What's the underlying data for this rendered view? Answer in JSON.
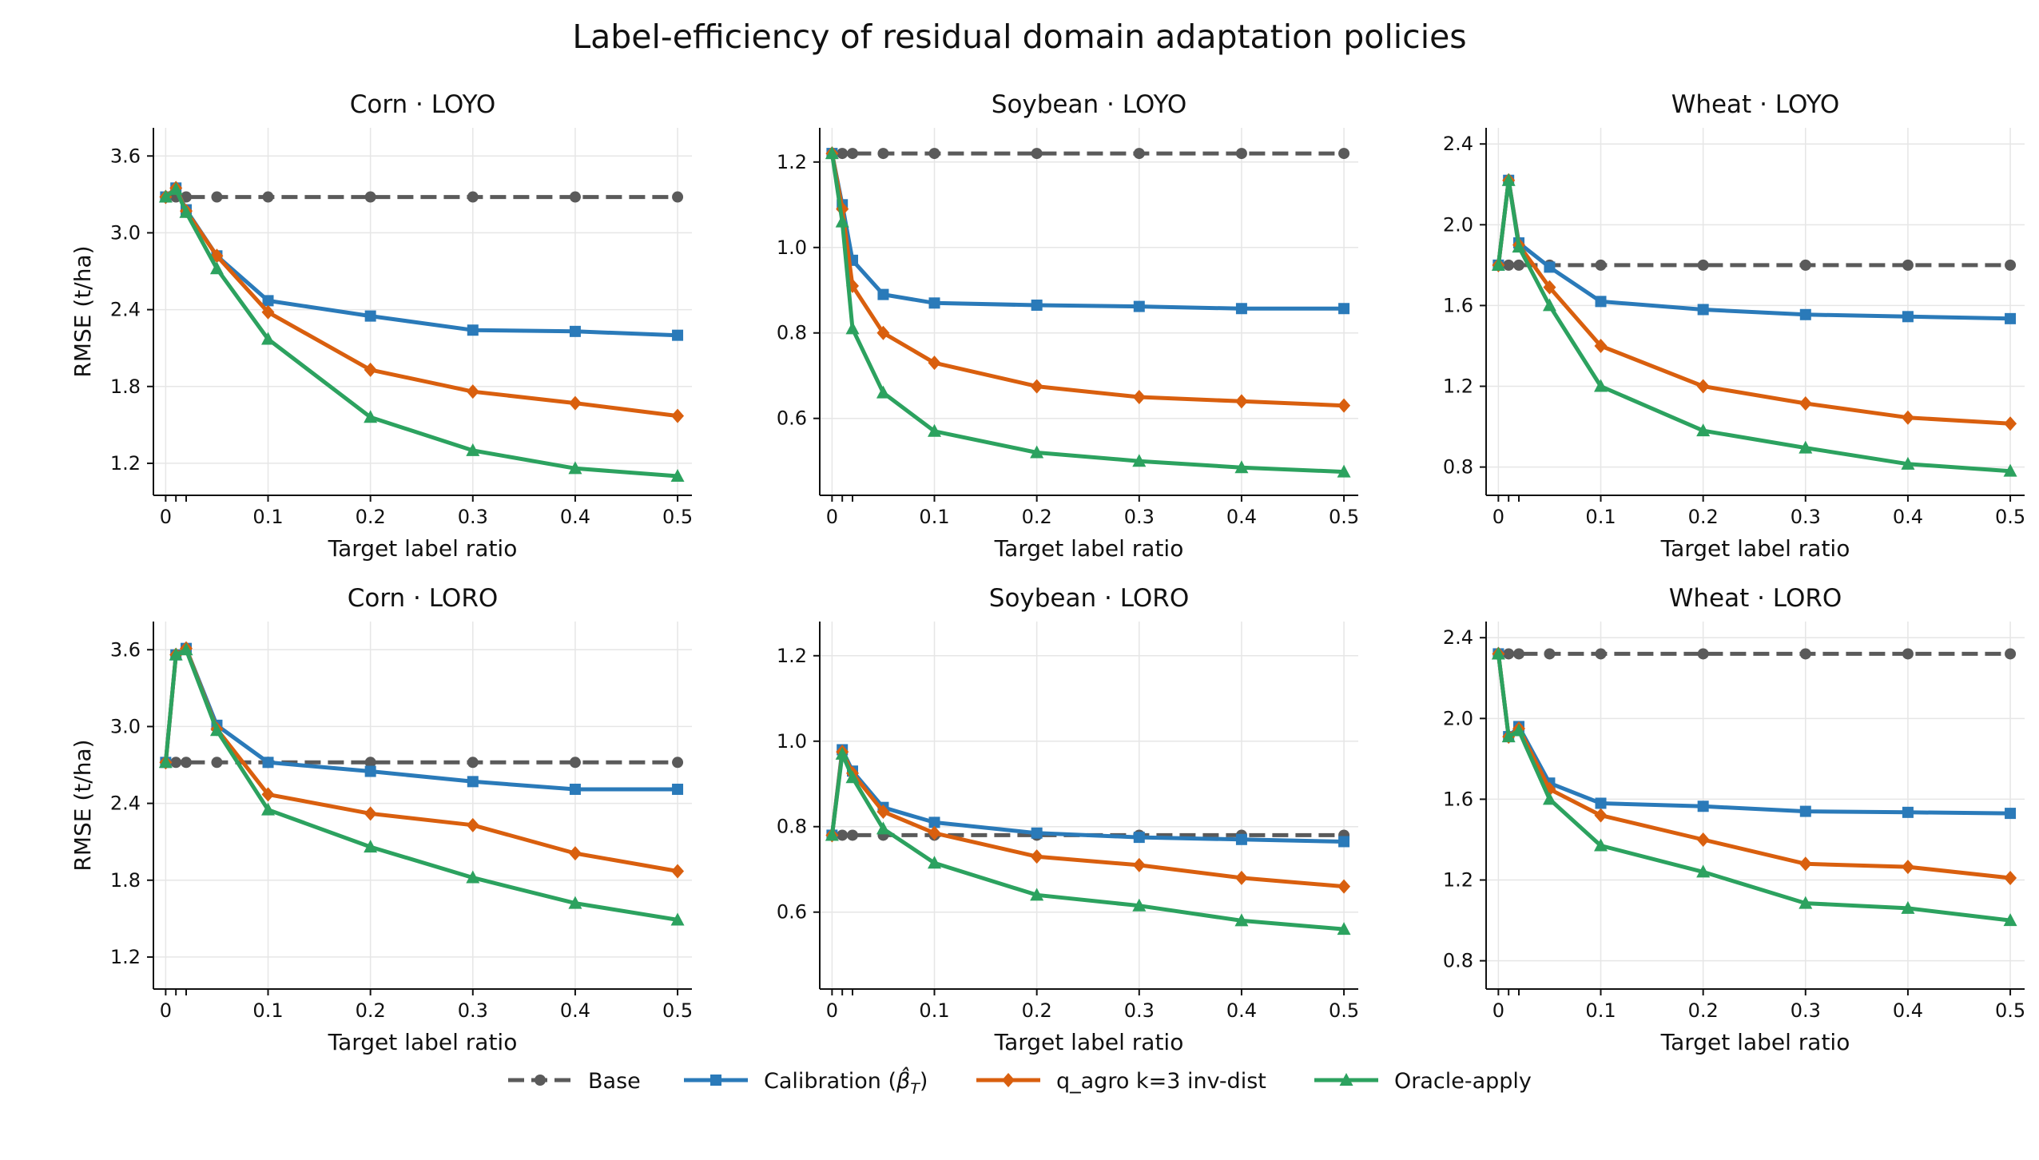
{
  "figure": {
    "title": "Label-efficiency of residual domain adaptation policies"
  },
  "legend": [
    {
      "key": "base",
      "label": "Base",
      "color": "#5a5a5a",
      "marker": "circle",
      "dash": true
    },
    {
      "key": "calib",
      "label": "Calibration (",
      "label_symbol": "β̂",
      "label_sub": "T",
      "label_end": ")",
      "color": "#2a7ab9",
      "marker": "square",
      "dash": false
    },
    {
      "key": "qagro",
      "label": "q_agro k=3 inv-dist",
      "color": "#d95f0e",
      "marker": "diamond",
      "dash": false
    },
    {
      "key": "oracle",
      "label": "Oracle-apply",
      "color": "#2ca25f",
      "marker": "triangle",
      "dash": false
    }
  ],
  "chart_data": [
    {
      "type": "line",
      "title": "Corn · LOYO",
      "xlabel": "Target label ratio",
      "ylabel": "RMSE (t/ha)",
      "xlim": [
        -0.012,
        0.514
      ],
      "ylim": [
        0.95,
        3.82
      ],
      "xticks": [
        0,
        0.1,
        0.2,
        0.3,
        0.4,
        0.5
      ],
      "xticklabels": [
        "0",
        "0.1",
        "0.2",
        "0.3",
        "0.4",
        "0.5"
      ],
      "minor_xticks": [
        0.01,
        0.02
      ],
      "yticks": [
        1.2,
        1.8,
        2.4,
        3.0,
        3.6
      ],
      "yticklabels": [
        "1.2",
        "1.8",
        "2.4",
        "3.0",
        "3.6"
      ],
      "grid": true,
      "x": [
        0,
        0.01,
        0.02,
        0.05,
        0.1,
        0.2,
        0.3,
        0.4,
        0.5
      ],
      "series": [
        {
          "key": "base",
          "values": [
            3.28,
            3.28,
            3.28,
            3.28,
            3.28,
            3.28,
            3.28,
            3.28,
            3.28
          ]
        },
        {
          "key": "calib",
          "values": [
            3.28,
            3.35,
            3.18,
            2.82,
            2.47,
            2.35,
            2.24,
            2.23,
            2.2
          ]
        },
        {
          "key": "qagro",
          "values": [
            3.28,
            3.35,
            3.17,
            2.82,
            2.38,
            1.93,
            1.76,
            1.67,
            1.57
          ]
        },
        {
          "key": "oracle",
          "values": [
            3.28,
            3.34,
            3.16,
            2.72,
            2.17,
            1.56,
            1.3,
            1.16,
            1.1
          ]
        }
      ]
    },
    {
      "type": "line",
      "title": "Soybean · LOYO",
      "xlabel": "Target label ratio",
      "ylabel": "",
      "xlim": [
        -0.012,
        0.514
      ],
      "ylim": [
        0.42,
        1.28
      ],
      "xticks": [
        0,
        0.1,
        0.2,
        0.3,
        0.4,
        0.5
      ],
      "xticklabels": [
        "0",
        "0.1",
        "0.2",
        "0.3",
        "0.4",
        "0.5"
      ],
      "minor_xticks": [
        0.01,
        0.02
      ],
      "yticks": [
        0.6,
        0.8,
        1.0,
        1.2
      ],
      "yticklabels": [
        "0.6",
        "0.8",
        "1.0",
        "1.2"
      ],
      "grid": true,
      "x": [
        0,
        0.01,
        0.02,
        0.05,
        0.1,
        0.2,
        0.3,
        0.4,
        0.5
      ],
      "series": [
        {
          "key": "base",
          "values": [
            1.22,
            1.22,
            1.22,
            1.22,
            1.22,
            1.22,
            1.22,
            1.22,
            1.22
          ]
        },
        {
          "key": "calib",
          "values": [
            1.22,
            1.1,
            0.97,
            0.89,
            0.87,
            0.865,
            0.862,
            0.857,
            0.857
          ]
        },
        {
          "key": "qagro",
          "values": [
            1.22,
            1.09,
            0.91,
            0.8,
            0.73,
            0.675,
            0.65,
            0.64,
            0.63
          ]
        },
        {
          "key": "oracle",
          "values": [
            1.22,
            1.06,
            0.81,
            0.66,
            0.57,
            0.52,
            0.5,
            0.485,
            0.475
          ]
        }
      ]
    },
    {
      "type": "line",
      "title": "Wheat · LOYO",
      "xlabel": "Target label ratio",
      "ylabel": "",
      "xlim": [
        -0.012,
        0.514
      ],
      "ylim": [
        0.66,
        2.48
      ],
      "xticks": [
        0,
        0.1,
        0.2,
        0.3,
        0.4,
        0.5
      ],
      "xticklabels": [
        "0",
        "0.1",
        "0.2",
        "0.3",
        "0.4",
        "0.5"
      ],
      "minor_xticks": [
        0.01,
        0.02
      ],
      "yticks": [
        0.8,
        1.2,
        1.6,
        2.0,
        2.4
      ],
      "yticklabels": [
        "0.8",
        "1.2",
        "1.6",
        "2.0",
        "2.4"
      ],
      "grid": true,
      "x": [
        0,
        0.01,
        0.02,
        0.05,
        0.1,
        0.2,
        0.3,
        0.4,
        0.5
      ],
      "series": [
        {
          "key": "base",
          "values": [
            1.8,
            1.8,
            1.8,
            1.8,
            1.8,
            1.8,
            1.8,
            1.8,
            1.8
          ]
        },
        {
          "key": "calib",
          "values": [
            1.8,
            2.22,
            1.91,
            1.79,
            1.62,
            1.58,
            1.555,
            1.545,
            1.535
          ]
        },
        {
          "key": "qagro",
          "values": [
            1.8,
            2.22,
            1.9,
            1.69,
            1.4,
            1.2,
            1.115,
            1.045,
            1.015
          ]
        },
        {
          "key": "oracle",
          "values": [
            1.8,
            2.22,
            1.89,
            1.6,
            1.2,
            0.98,
            0.895,
            0.815,
            0.78
          ]
        }
      ]
    },
    {
      "type": "line",
      "title": "Corn · LORO",
      "xlabel": "Target label ratio",
      "ylabel": "RMSE (t/ha)",
      "xlim": [
        -0.012,
        0.514
      ],
      "ylim": [
        0.95,
        3.82
      ],
      "xticks": [
        0,
        0.1,
        0.2,
        0.3,
        0.4,
        0.5
      ],
      "xticklabels": [
        "0",
        "0.1",
        "0.2",
        "0.3",
        "0.4",
        "0.5"
      ],
      "minor_xticks": [
        0.01,
        0.02
      ],
      "yticks": [
        1.2,
        1.8,
        2.4,
        3.0,
        3.6
      ],
      "yticklabels": [
        "1.2",
        "1.8",
        "2.4",
        "3.0",
        "3.6"
      ],
      "grid": true,
      "x": [
        0,
        0.01,
        0.02,
        0.05,
        0.1,
        0.2,
        0.3,
        0.4,
        0.5
      ],
      "series": [
        {
          "key": "base",
          "values": [
            2.72,
            2.72,
            2.72,
            2.72,
            2.72,
            2.72,
            2.72,
            2.72,
            2.72
          ]
        },
        {
          "key": "calib",
          "values": [
            2.72,
            3.56,
            3.61,
            3.01,
            2.72,
            2.65,
            2.57,
            2.51,
            2.51
          ]
        },
        {
          "key": "qagro",
          "values": [
            2.72,
            3.56,
            3.61,
            2.98,
            2.47,
            2.32,
            2.23,
            2.01,
            1.87
          ]
        },
        {
          "key": "oracle",
          "values": [
            2.72,
            3.56,
            3.6,
            2.97,
            2.35,
            2.06,
            1.82,
            1.62,
            1.49
          ]
        }
      ]
    },
    {
      "type": "line",
      "title": "Soybean · LORO",
      "xlabel": "Target label ratio",
      "ylabel": "",
      "xlim": [
        -0.012,
        0.514
      ],
      "ylim": [
        0.42,
        1.28
      ],
      "xticks": [
        0,
        0.1,
        0.2,
        0.3,
        0.4,
        0.5
      ],
      "xticklabels": [
        "0",
        "0.1",
        "0.2",
        "0.3",
        "0.4",
        "0.5"
      ],
      "minor_xticks": [
        0.01,
        0.02
      ],
      "yticks": [
        0.6,
        0.8,
        1.0,
        1.2
      ],
      "yticklabels": [
        "0.6",
        "0.8",
        "1.0",
        "1.2"
      ],
      "grid": true,
      "x": [
        0,
        0.01,
        0.02,
        0.05,
        0.1,
        0.2,
        0.3,
        0.4,
        0.5
      ],
      "series": [
        {
          "key": "base",
          "values": [
            0.78,
            0.78,
            0.78,
            0.78,
            0.78,
            0.78,
            0.78,
            0.78,
            0.78
          ]
        },
        {
          "key": "calib",
          "values": [
            0.78,
            0.98,
            0.93,
            0.845,
            0.81,
            0.785,
            0.775,
            0.77,
            0.765
          ]
        },
        {
          "key": "qagro",
          "values": [
            0.78,
            0.975,
            0.925,
            0.835,
            0.785,
            0.73,
            0.71,
            0.68,
            0.66
          ]
        },
        {
          "key": "oracle",
          "values": [
            0.78,
            0.97,
            0.915,
            0.795,
            0.715,
            0.64,
            0.615,
            0.58,
            0.56
          ]
        }
      ]
    },
    {
      "type": "line",
      "title": "Wheat · LORO",
      "xlabel": "Target label ratio",
      "ylabel": "",
      "xlim": [
        -0.012,
        0.514
      ],
      "ylim": [
        0.66,
        2.48
      ],
      "xticks": [
        0,
        0.1,
        0.2,
        0.3,
        0.4,
        0.5
      ],
      "xticklabels": [
        "0",
        "0.1",
        "0.2",
        "0.3",
        "0.4",
        "0.5"
      ],
      "minor_xticks": [
        0.01,
        0.02
      ],
      "yticks": [
        0.8,
        1.2,
        1.6,
        2.0,
        2.4
      ],
      "yticklabels": [
        "0.8",
        "1.2",
        "1.6",
        "2.0",
        "2.4"
      ],
      "grid": true,
      "x": [
        0,
        0.01,
        0.02,
        0.05,
        0.1,
        0.2,
        0.3,
        0.4,
        0.5
      ],
      "series": [
        {
          "key": "base",
          "values": [
            2.32,
            2.32,
            2.32,
            2.32,
            2.32,
            2.32,
            2.32,
            2.32,
            2.32
          ]
        },
        {
          "key": "calib",
          "values": [
            2.32,
            1.91,
            1.96,
            1.68,
            1.58,
            1.565,
            1.54,
            1.535,
            1.53
          ]
        },
        {
          "key": "qagro",
          "values": [
            2.32,
            1.91,
            1.95,
            1.65,
            1.52,
            1.4,
            1.28,
            1.265,
            1.21
          ]
        },
        {
          "key": "oracle",
          "values": [
            2.32,
            1.91,
            1.94,
            1.6,
            1.37,
            1.24,
            1.085,
            1.06,
            1.0
          ]
        }
      ]
    }
  ]
}
